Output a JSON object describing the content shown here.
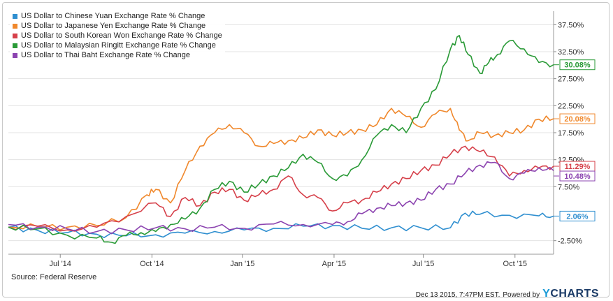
{
  "chart_data": {
    "type": "line",
    "xlabel": "",
    "ylabel": "",
    "x_ticks": [
      "Jul '14",
      "Oct '14",
      "Jan '15",
      "Apr '15",
      "Jul '15",
      "Oct '15"
    ],
    "y_ticks": [
      "-2.50%",
      "7.50%",
      "12.50%",
      "17.50%",
      "22.50%",
      "27.50%",
      "32.50%",
      "37.50%"
    ],
    "ylim": [
      -5,
      40
    ],
    "xlim": [
      0,
      18.5
    ],
    "grid": true,
    "legend_position": "top-left",
    "series": [
      {
        "name": "US Dollar to Chinese Yuan Exchange Rate % Change",
        "color": "#2f8fd0",
        "end_label": "2.06%",
        "x": [
          0,
          1,
          2,
          3,
          4,
          5,
          6,
          7,
          8,
          9,
          10,
          11,
          12,
          13,
          14,
          15,
          15.5,
          16,
          17,
          18,
          18.5
        ],
        "y": [
          0.0,
          -0.6,
          -1.0,
          -1.3,
          -1.6,
          -1.4,
          -1.1,
          -0.8,
          -0.5,
          -0.2,
          0.2,
          0.3,
          -0.2,
          -0.1,
          -0.1,
          -0.1,
          2.6,
          2.4,
          2.2,
          2.1,
          2.06
        ]
      },
      {
        "name": "US Dollar to Japanese Yen Exchange Rate % Change",
        "color": "#f0882c",
        "end_label": "20.08%",
        "x": [
          0,
          1,
          2,
          3,
          4,
          4.7,
          5,
          5.5,
          6,
          6.5,
          7,
          7.5,
          8,
          8.5,
          9,
          9.5,
          10,
          10.5,
          11,
          11.5,
          12,
          12.5,
          13,
          13.5,
          14,
          14.5,
          15,
          15.3,
          15.6,
          16,
          16.5,
          17,
          17.5,
          18,
          18.5
        ],
        "y": [
          0.0,
          0.1,
          0.0,
          0.3,
          1.8,
          6.0,
          7.0,
          4.5,
          10.5,
          15.0,
          17.5,
          19.0,
          17.5,
          15.0,
          15.5,
          16.0,
          16.5,
          18.0,
          17.0,
          17.5,
          18.0,
          19.0,
          22.0,
          20.5,
          18.5,
          21.0,
          22.0,
          18.0,
          16.0,
          17.5,
          17.0,
          17.5,
          18.0,
          20.0,
          20.08
        ]
      },
      {
        "name": "US Dollar to South Korean Won Exchange Rate % Change",
        "color": "#d6404a",
        "end_label": "11.29%",
        "x": [
          0,
          1,
          2,
          3,
          4,
          5,
          5.5,
          6,
          6.5,
          7,
          7.5,
          8,
          8.5,
          9,
          9.5,
          10,
          10.5,
          11,
          11.5,
          12,
          12.5,
          13,
          13.5,
          14,
          14.5,
          15,
          15.5,
          16,
          16.5,
          17,
          17.5,
          18,
          18.5
        ],
        "y": [
          0.0,
          0.2,
          -0.5,
          0.0,
          2.0,
          4.5,
          2.0,
          5.5,
          4.0,
          6.5,
          7.0,
          5.0,
          6.0,
          7.0,
          9.5,
          6.0,
          5.5,
          3.0,
          4.5,
          5.0,
          6.5,
          8.0,
          9.0,
          10.5,
          11.5,
          13.5,
          15.0,
          14.0,
          13.0,
          9.5,
          10.5,
          11.0,
          11.29
        ]
      },
      {
        "name": "US Dollar to Malaysian Ringitt Exchange Rate % Change",
        "color": "#2a9a37",
        "end_label": "30.08%",
        "x": [
          0,
          1,
          2,
          3,
          3.5,
          4,
          4.5,
          5,
          5.5,
          6,
          6.5,
          7,
          7.5,
          8,
          8.5,
          9,
          9.5,
          10,
          10.5,
          11,
          11.5,
          12,
          12.5,
          13,
          13.5,
          14,
          14.5,
          15,
          15.3,
          15.6,
          16,
          16.3,
          16.6,
          17,
          17.5,
          18,
          18.5
        ],
        "y": [
          0.0,
          -0.3,
          -1.5,
          -2.0,
          -2.8,
          -1.5,
          -1.0,
          -0.8,
          0.5,
          1.5,
          3.5,
          7.0,
          8.5,
          6.5,
          8.0,
          9.5,
          11.0,
          13.5,
          12.0,
          9.0,
          9.5,
          12.5,
          17.0,
          19.0,
          17.5,
          22.0,
          25.5,
          33.0,
          35.5,
          32.0,
          28.5,
          30.5,
          32.0,
          34.5,
          33.0,
          30.5,
          30.08
        ]
      },
      {
        "name": "US Dollar to Thai Baht Exchange Rate % Change",
        "color": "#8c44b0",
        "end_label": "10.48%",
        "x": [
          0,
          1,
          2,
          3,
          4,
          5,
          6,
          7,
          8,
          9,
          10,
          11,
          11.5,
          12,
          12.5,
          13,
          13.5,
          14,
          14.5,
          15,
          15.5,
          16,
          16.5,
          17,
          17.5,
          18,
          18.5
        ],
        "y": [
          0.5,
          0.0,
          -0.3,
          -0.8,
          -0.5,
          -0.1,
          -0.3,
          0.0,
          -0.2,
          0.6,
          0.5,
          0.5,
          1.0,
          2.5,
          3.5,
          4.0,
          4.5,
          5.0,
          7.0,
          8.0,
          10.0,
          11.5,
          12.0,
          9.0,
          10.0,
          11.0,
          10.48
        ]
      }
    ]
  },
  "footer": {
    "source": "Source: Federal Reserve",
    "timestamp": "Dec 13 2015, 7:47PM EST.",
    "powered_by": "Powered by",
    "brand_y": "Y",
    "brand_rest": "CHARTS"
  }
}
